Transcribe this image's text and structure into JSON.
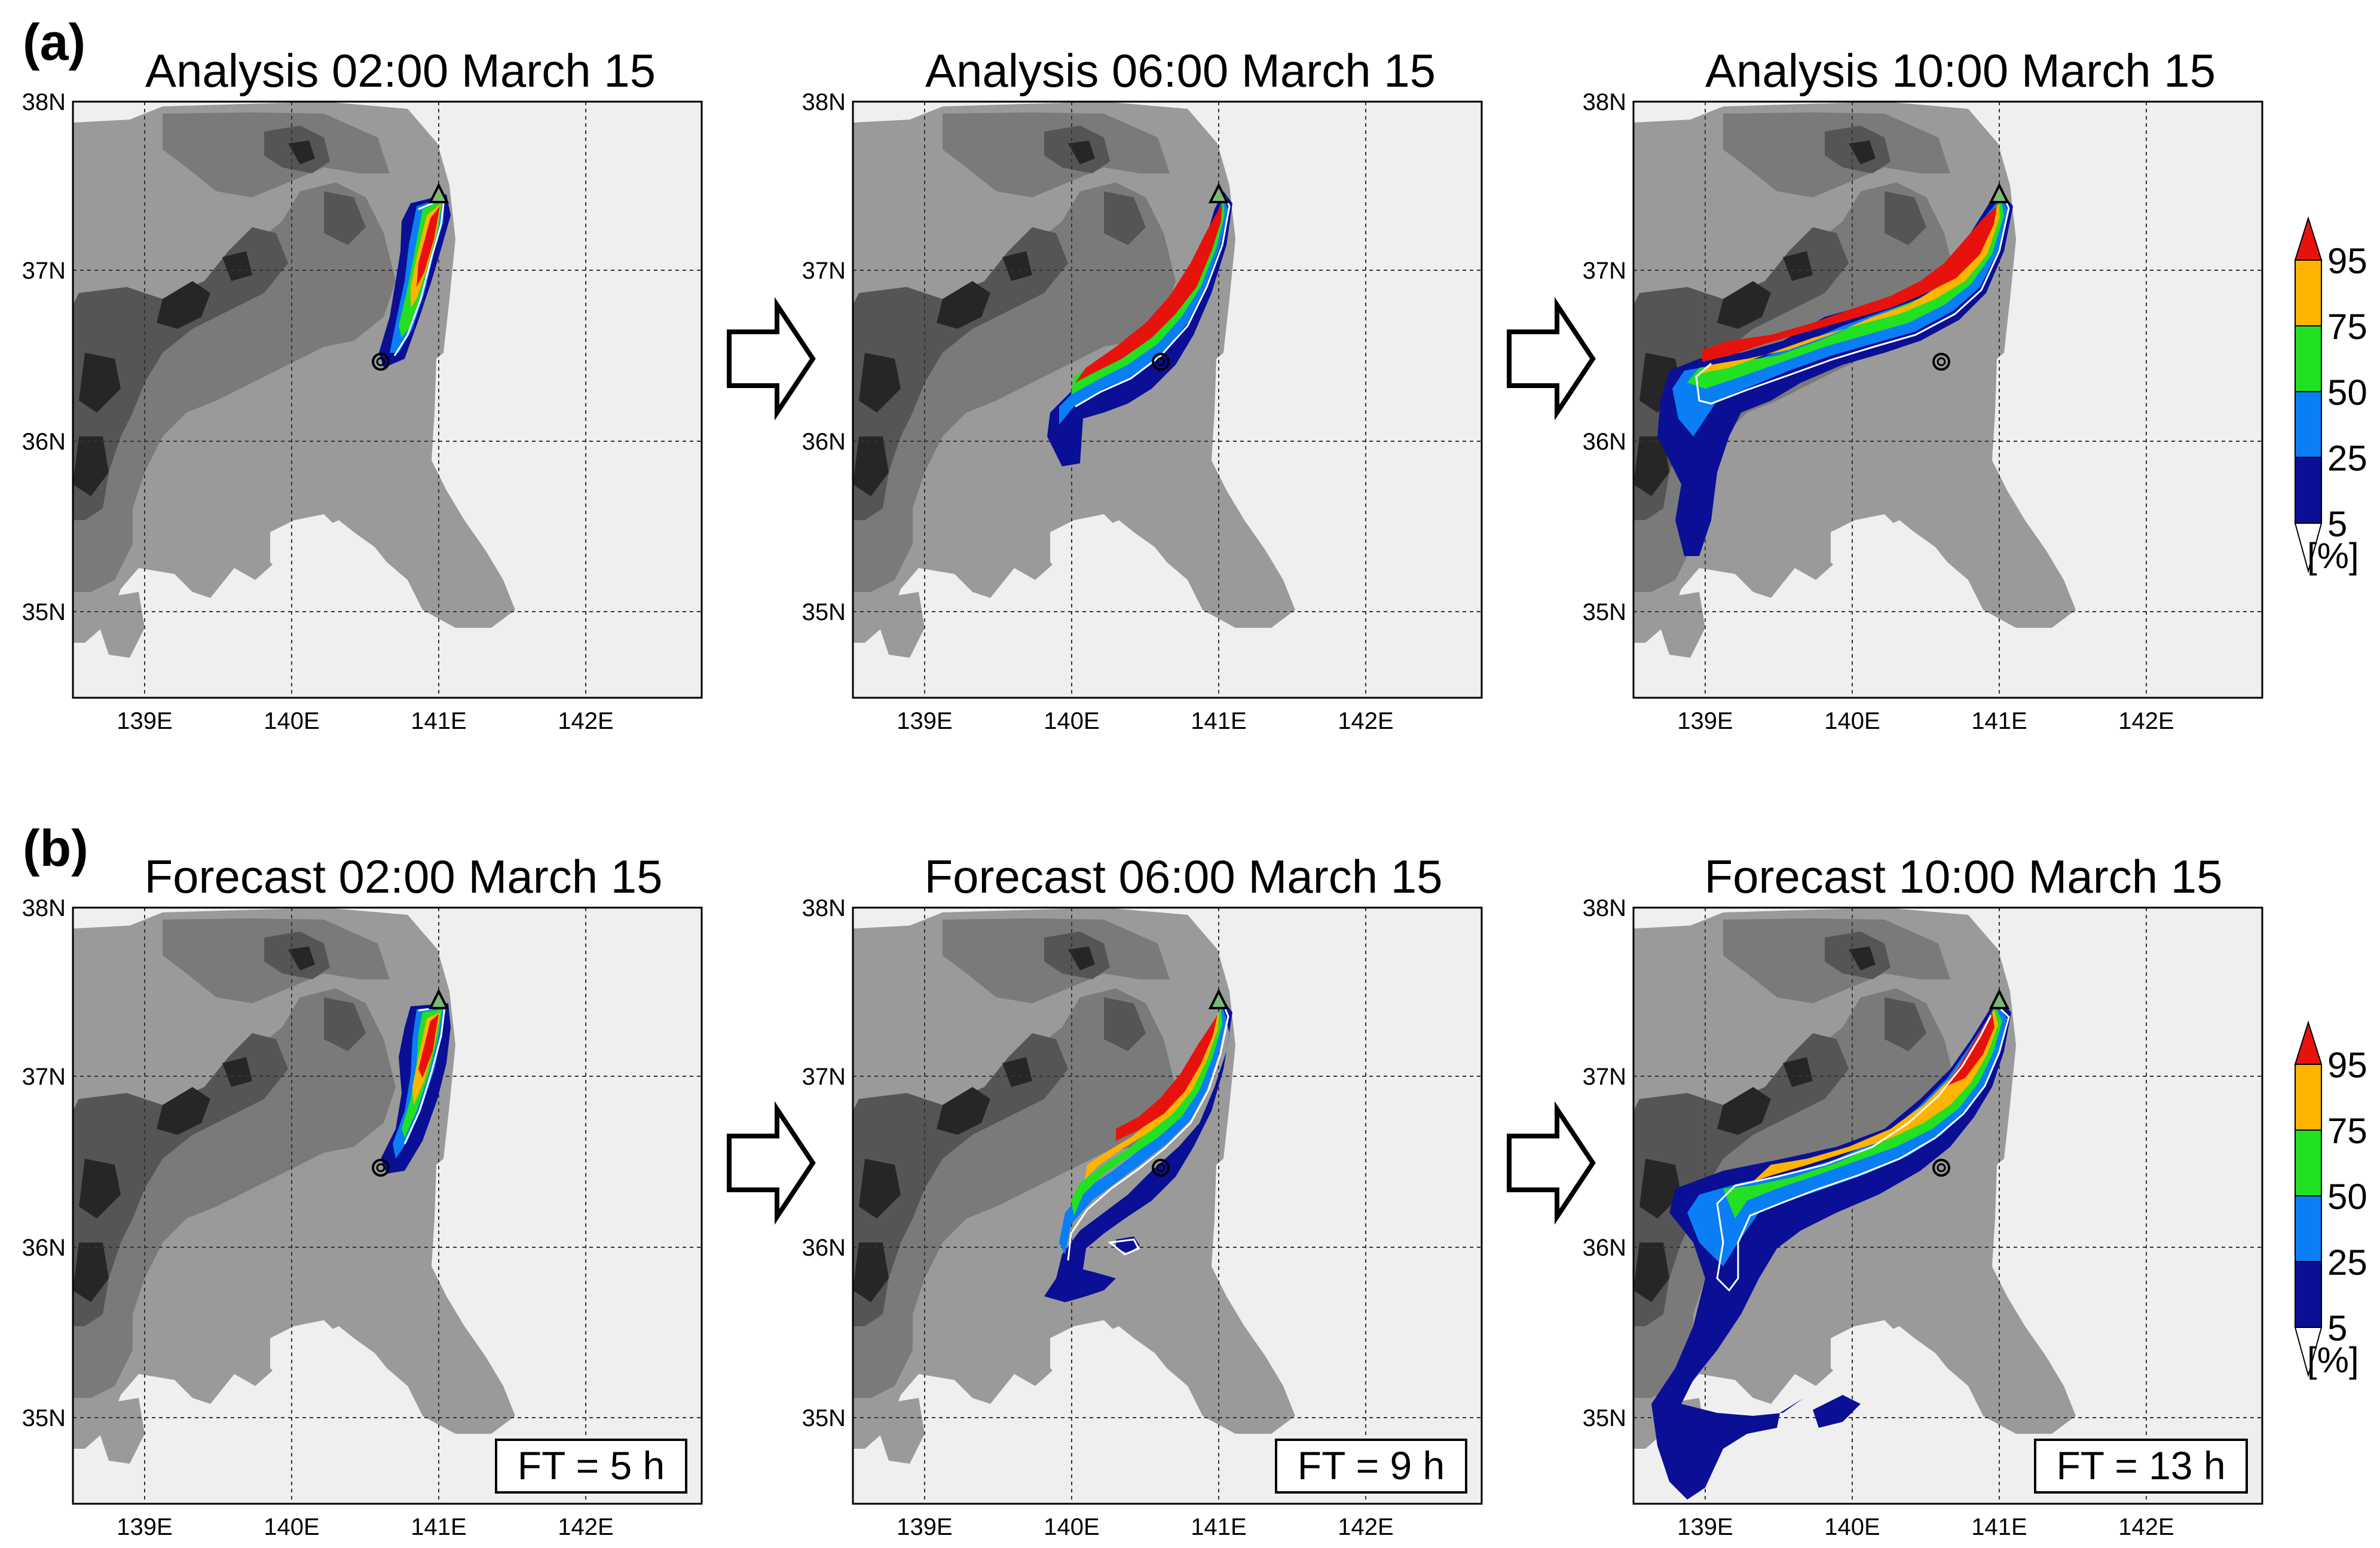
{
  "panel_labels": {
    "a": "(a)",
    "b": "(b)"
  },
  "rows": [
    {
      "panels": [
        {
          "title": "Analysis 02:00 March 15",
          "ft": ""
        },
        {
          "title": "Analysis 06:00 March 15",
          "ft": ""
        },
        {
          "title": "Analysis 10:00 March 15",
          "ft": ""
        }
      ]
    },
    {
      "panels": [
        {
          "title": "Forecast 02:00 March 15",
          "ft": "FT = 5 h"
        },
        {
          "title": "Forecast 06:00 March 15",
          "ft": "FT = 9 h"
        },
        {
          "title": "Forecast 10:00 March 15",
          "ft": "FT = 13 h"
        }
      ]
    }
  ],
  "axes": {
    "lat_labels": [
      "38N",
      "37N",
      "36N",
      "35N"
    ],
    "lon_labels": [
      "139E",
      "140E",
      "141E",
      "142E"
    ]
  },
  "colorbar": {
    "labels": [
      "95",
      "75",
      "50",
      "25",
      "5"
    ],
    "unit": "[%]",
    "colors": [
      "#e8120c",
      "#ffb400",
      "#22e022",
      "#0a7ef5",
      "#0a0f96",
      "#ffffff"
    ]
  },
  "map_colors": {
    "sea": "#efefef",
    "land_low": "#9a9a9a",
    "land_mid": "#737373",
    "land_high": "#4a4a4a",
    "land_peak": "#1e1e1e"
  }
}
